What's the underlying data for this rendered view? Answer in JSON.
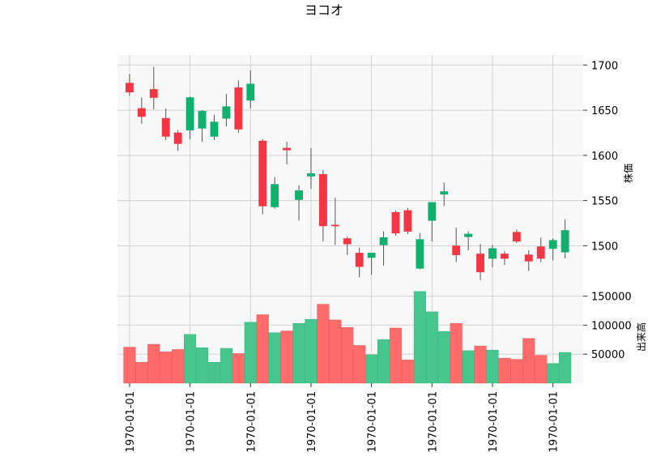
{
  "chart_data": {
    "type": "candlestick",
    "title": "ヨコオ",
    "ylabel_price": "株価",
    "ylabel_volume": "出来高",
    "x_tick_labels": [
      "1970-01-01",
      "1970-01-01",
      "1970-01-01",
      "1970-01-01",
      "1970-01-01",
      "1970-01-01",
      "1970-01-01",
      "1970-01-01"
    ],
    "price_ticks": [
      1500,
      1550,
      1600,
      1650,
      1700
    ],
    "volume_ticks": [
      50000,
      100000,
      150000
    ],
    "price_range": [
      1452,
      1711
    ],
    "volume_range": [
      0,
      162000
    ],
    "grid": true,
    "colors": {
      "up": "#26a69a",
      "up_fill": "#10b06e",
      "down": "#ef5350",
      "down_fill": "#f23645",
      "volume_up": "#46c68c",
      "volume_down": "#ff6b6b",
      "panel_bg": "#f8f8f8",
      "grid": "#d4d4d4"
    },
    "candles": [
      {
        "open": 1680,
        "high": 1690,
        "low": 1666,
        "close": 1670,
        "volume": 62000
      },
      {
        "open": 1652,
        "high": 1664,
        "low": 1635,
        "close": 1643,
        "volume": 36000
      },
      {
        "open": 1673,
        "high": 1698,
        "low": 1651,
        "close": 1664,
        "volume": 67000
      },
      {
        "open": 1641,
        "high": 1652,
        "low": 1617,
        "close": 1621,
        "volume": 54000
      },
      {
        "open": 1625,
        "high": 1628,
        "low": 1605,
        "close": 1613,
        "volume": 58000
      },
      {
        "open": 1628,
        "high": 1665,
        "low": 1618,
        "close": 1664,
        "volume": 84000
      },
      {
        "open": 1630,
        "high": 1650,
        "low": 1615,
        "close": 1649,
        "volume": 61000
      },
      {
        "open": 1621,
        "high": 1645,
        "low": 1617,
        "close": 1637,
        "volume": 36000
      },
      {
        "open": 1641,
        "high": 1668,
        "low": 1632,
        "close": 1654,
        "volume": 60000
      },
      {
        "open": 1675,
        "high": 1683,
        "low": 1625,
        "close": 1629,
        "volume": 51000
      },
      {
        "open": 1661,
        "high": 1694,
        "low": 1652,
        "close": 1679,
        "volume": 105000
      },
      {
        "open": 1616,
        "high": 1618,
        "low": 1535,
        "close": 1544,
        "volume": 118000
      },
      {
        "open": 1543,
        "high": 1576,
        "low": 1541,
        "close": 1568,
        "volume": 87000
      },
      {
        "open": 1608,
        "high": 1615,
        "low": 1590,
        "close": 1606,
        "volume": 90000
      },
      {
        "open": 1551,
        "high": 1567,
        "low": 1528,
        "close": 1561,
        "volume": 103000
      },
      {
        "open": 1577,
        "high": 1608,
        "low": 1563,
        "close": 1580,
        "volume": 110000
      },
      {
        "open": 1579,
        "high": 1584,
        "low": 1505,
        "close": 1522,
        "volume": 136000
      },
      {
        "open": 1523,
        "high": 1553,
        "low": 1501,
        "close": 1522,
        "volume": 109000
      },
      {
        "open": 1508,
        "high": 1510,
        "low": 1490,
        "close": 1502,
        "volume": 96000
      },
      {
        "open": 1492,
        "high": 1498,
        "low": 1465,
        "close": 1477,
        "volume": 65000
      },
      {
        "open": 1487,
        "high": 1492,
        "low": 1468,
        "close": 1492,
        "volume": 49000
      },
      {
        "open": 1501,
        "high": 1516,
        "low": 1478,
        "close": 1509,
        "volume": 75000
      },
      {
        "open": 1537,
        "high": 1539,
        "low": 1511,
        "close": 1514,
        "volume": 95000
      },
      {
        "open": 1539,
        "high": 1542,
        "low": 1513,
        "close": 1516,
        "volume": 40000
      },
      {
        "open": 1475,
        "high": 1514,
        "low": 1474,
        "close": 1507,
        "volume": 158000
      },
      {
        "open": 1528,
        "high": 1548,
        "low": 1505,
        "close": 1548,
        "volume": 123000
      },
      {
        "open": 1557,
        "high": 1570,
        "low": 1544,
        "close": 1560,
        "volume": 89000
      },
      {
        "open": 1500,
        "high": 1520,
        "low": 1482,
        "close": 1490,
        "volume": 103000
      },
      {
        "open": 1510,
        "high": 1516,
        "low": 1495,
        "close": 1513,
        "volume": 56000
      },
      {
        "open": 1491,
        "high": 1502,
        "low": 1462,
        "close": 1471,
        "volume": 64000
      },
      {
        "open": 1486,
        "high": 1501,
        "low": 1476,
        "close": 1497,
        "volume": 57000
      },
      {
        "open": 1491,
        "high": 1494,
        "low": 1479,
        "close": 1486,
        "volume": 43000
      },
      {
        "open": 1515,
        "high": 1518,
        "low": 1503,
        "close": 1505,
        "volume": 41000
      },
      {
        "open": 1490,
        "high": 1495,
        "low": 1472,
        "close": 1483,
        "volume": 77000
      },
      {
        "open": 1499,
        "high": 1509,
        "low": 1482,
        "close": 1486,
        "volume": 48000
      },
      {
        "open": 1497,
        "high": 1508,
        "low": 1484,
        "close": 1506,
        "volume": 34000
      },
      {
        "open": 1493,
        "high": 1529,
        "low": 1486,
        "close": 1517,
        "volume": 53000
      }
    ]
  }
}
